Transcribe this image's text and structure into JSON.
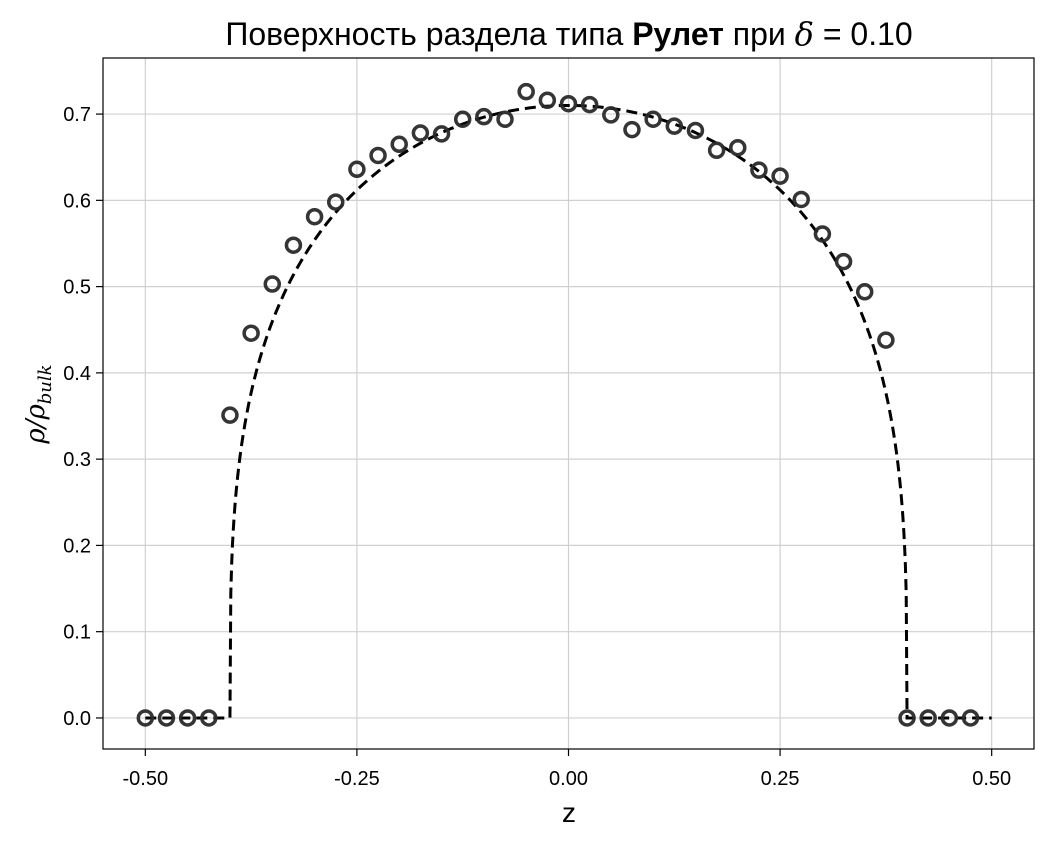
{
  "chart_data": {
    "type": "scatter",
    "title": {
      "prefix": "Поверхность раздела типа ",
      "bold": "Рулет",
      "middle": " при ",
      "symbol": "δ",
      "suffix": " = 0.10"
    },
    "xlabel": "z",
    "ylabel": {
      "main": "ρ/ρ",
      "sub": "bulk"
    },
    "xlim": [
      -0.55,
      0.55
    ],
    "ylim": [
      -0.036,
      0.765
    ],
    "grid": true,
    "xticks": [
      {
        "value": -0.5,
        "label": "-0.50"
      },
      {
        "value": -0.25,
        "label": "-0.25"
      },
      {
        "value": 0.0,
        "label": "0.00"
      },
      {
        "value": 0.25,
        "label": "0.25"
      },
      {
        "value": 0.5,
        "label": "0.50"
      }
    ],
    "yticks": [
      {
        "value": 0.0,
        "label": "0.0"
      },
      {
        "value": 0.1,
        "label": "0.1"
      },
      {
        "value": 0.2,
        "label": "0.2"
      },
      {
        "value": 0.3,
        "label": "0.3"
      },
      {
        "value": 0.4,
        "label": "0.4"
      },
      {
        "value": 0.5,
        "label": "0.5"
      },
      {
        "value": 0.6,
        "label": "0.6"
      },
      {
        "value": 0.7,
        "label": "0.7"
      }
    ],
    "series": [
      {
        "kind": "points",
        "marker": "open-circle",
        "color": "#2a2a2a",
        "x": [
          -0.5,
          -0.475,
          -0.45,
          -0.425,
          -0.4,
          -0.375,
          -0.35,
          -0.325,
          -0.3,
          -0.275,
          -0.25,
          -0.225,
          -0.2,
          -0.175,
          -0.15,
          -0.125,
          -0.1,
          -0.075,
          -0.05,
          -0.025,
          0.0,
          0.025,
          0.05,
          0.075,
          0.1,
          0.125,
          0.15,
          0.175,
          0.2,
          0.225,
          0.25,
          0.275,
          0.3,
          0.325,
          0.35,
          0.375,
          0.4,
          0.425,
          0.45,
          0.475
        ],
        "y": [
          0.0,
          0.0,
          0.0,
          0.0,
          0.351,
          0.446,
          0.503,
          0.548,
          0.581,
          0.598,
          0.636,
          0.652,
          0.665,
          0.678,
          0.677,
          0.694,
          0.697,
          0.694,
          0.726,
          0.716,
          0.712,
          0.711,
          0.699,
          0.682,
          0.694,
          0.686,
          0.681,
          0.658,
          0.661,
          0.635,
          0.628,
          0.601,
          0.561,
          0.529,
          0.494,
          0.438,
          0.0,
          0.0,
          0.0,
          0.0
        ]
      },
      {
        "kind": "curve",
        "line_style": "dashed",
        "color": "#000000",
        "model": "semicircle profile: y = 0.71*sqrt(1 - (z/0.40)^2)^0.7 for |z| < 0.40, else 0",
        "x_range": [
          -0.5,
          0.5
        ],
        "z0": 0.4,
        "amplitude": 0.71
      }
    ]
  }
}
